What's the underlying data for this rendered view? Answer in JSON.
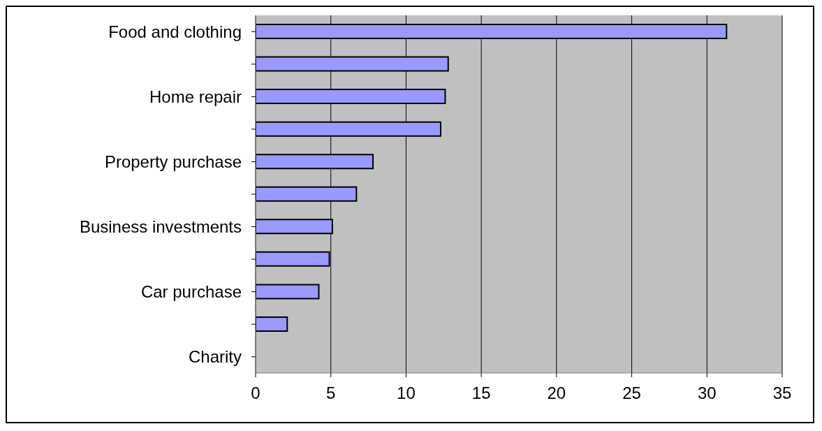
{
  "chart_data": {
    "type": "bar",
    "orientation": "horizontal",
    "categories": [
      "Food and clothing",
      null,
      "Home repair",
      null,
      "Property purchase",
      null,
      "Business investments",
      null,
      "Car purchase",
      null,
      "Charity"
    ],
    "values": [
      31.3,
      12.8,
      12.6,
      12.3,
      7.8,
      6.7,
      5.1,
      4.9,
      4.2,
      2.1,
      0
    ],
    "color": "#9999ff",
    "xlim": [
      0,
      35
    ],
    "xticks": [
      0,
      5,
      10,
      15,
      20,
      25,
      30,
      35
    ],
    "grid": "x"
  }
}
